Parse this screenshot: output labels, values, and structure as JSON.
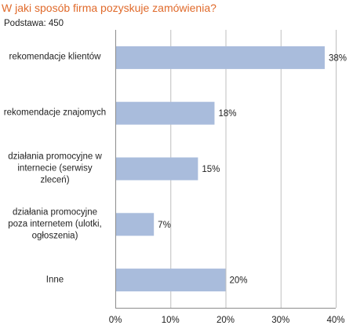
{
  "title": "W jaki sposób firma pozyskuje zamówienia?",
  "subtitle": "Podstawa:  450",
  "colors": {
    "title": "#e06a2b",
    "bar": "#a9bcdc",
    "grid": "#bfbfbf",
    "axis": "#8c8c8c"
  },
  "chart_data": {
    "type": "bar",
    "orientation": "horizontal",
    "title": "W jaki sposób firma pozyskuje zamówienia?",
    "subtitle": "Podstawa:  450",
    "categories": [
      "rekomendacje klientów",
      "rekomendacje znajomych",
      "działania promocyjne w\ninternecie (serwisy\nzleceń)",
      "działania promocyjne\npoza internetem (ulotki,\nogłoszenia)",
      "Inne"
    ],
    "values": [
      38,
      18,
      15,
      7,
      20
    ],
    "data_labels": [
      "38%",
      "18%",
      "15%",
      "7%",
      "20%"
    ],
    "xlim": [
      0,
      40
    ],
    "xticks": [
      0,
      10,
      20,
      30,
      40
    ],
    "xtick_labels": [
      "0%",
      "10%",
      "20%",
      "30%",
      "40%"
    ],
    "grid": true,
    "legend": false
  }
}
